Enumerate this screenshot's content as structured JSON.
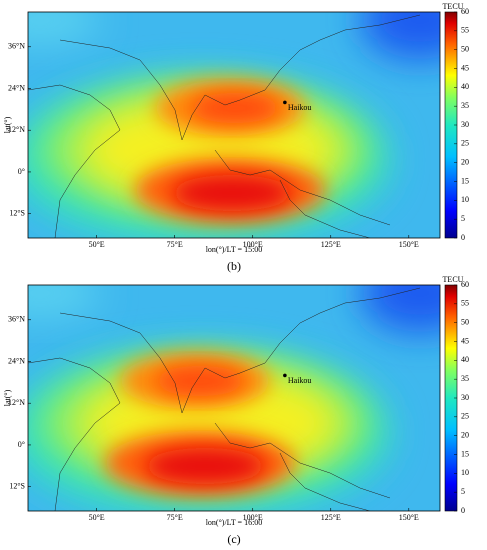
{
  "ylabel": "lat(°)",
  "city": "Haikou",
  "xlim": [
    28,
    160
  ],
  "ylim": [
    -19,
    46
  ],
  "xticks": [
    {
      "value": 50,
      "label": "50°E"
    },
    {
      "value": 75,
      "label": "75°E"
    },
    {
      "value": 100,
      "label": "100°E"
    },
    {
      "value": 125,
      "label": "125°E"
    },
    {
      "value": 150,
      "label": "150°E"
    }
  ],
  "yticks": [
    {
      "value": 36,
      "label": "36°N"
    },
    {
      "value": 24,
      "label": "24°N"
    },
    {
      "value": 12,
      "label": "12°N"
    },
    {
      "value": 0,
      "label": "0°"
    },
    {
      "value": -12,
      "label": "12°S"
    }
  ],
  "colorbar": {
    "title": "TECU",
    "lim": [
      0,
      60
    ],
    "ticks": [
      0,
      5,
      10,
      15,
      20,
      25,
      30,
      35,
      40,
      45,
      50,
      55,
      60
    ]
  },
  "panels": [
    {
      "label": "(b)",
      "xlabel": "lon(°)/LT = 15:00"
    },
    {
      "label": "(c)",
      "xlabel": "lon(°)/LT = 16:00"
    }
  ]
}
